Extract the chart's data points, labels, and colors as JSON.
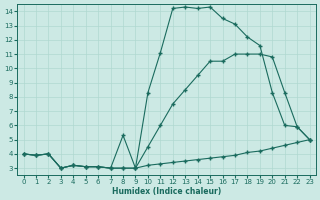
{
  "xlabel": "Humidex (Indice chaleur)",
  "xlim": [
    -0.5,
    23.5
  ],
  "ylim": [
    2.5,
    14.5
  ],
  "xticks": [
    0,
    1,
    2,
    3,
    4,
    5,
    6,
    7,
    8,
    9,
    10,
    11,
    12,
    13,
    14,
    15,
    16,
    17,
    18,
    19,
    20,
    21,
    22,
    23
  ],
  "yticks": [
    3,
    4,
    5,
    6,
    7,
    8,
    9,
    10,
    11,
    12,
    13,
    14
  ],
  "bg_color": "#cce9e4",
  "line_color": "#1a6b5e",
  "grid_color": "#b0d8d0",
  "lines": [
    {
      "x": [
        0,
        1,
        2,
        3,
        4,
        5,
        6,
        7,
        8,
        9,
        10,
        11,
        12,
        13,
        14,
        15,
        16,
        17,
        18,
        19,
        20,
        21,
        22,
        23
      ],
      "y": [
        4.0,
        3.9,
        4.0,
        3.0,
        3.2,
        3.1,
        3.1,
        3.0,
        3.0,
        3.0,
        3.2,
        3.3,
        3.4,
        3.5,
        3.6,
        3.7,
        3.8,
        3.9,
        4.1,
        4.2,
        4.4,
        4.6,
        4.8,
        5.0
      ]
    },
    {
      "x": [
        0,
        1,
        2,
        3,
        4,
        5,
        6,
        7,
        8,
        9,
        10,
        11,
        12,
        13,
        14,
        15,
        16,
        17,
        18,
        19,
        20,
        21,
        22,
        23
      ],
      "y": [
        4.0,
        3.9,
        4.0,
        3.0,
        3.2,
        3.1,
        3.1,
        3.0,
        3.0,
        3.0,
        4.5,
        6.0,
        7.5,
        8.5,
        9.5,
        10.5,
        10.5,
        11.0,
        11.0,
        11.0,
        10.8,
        8.3,
        5.9,
        5.0
      ]
    },
    {
      "x": [
        0,
        1,
        2,
        3,
        4,
        5,
        6,
        7,
        8,
        9,
        10,
        11,
        12,
        13,
        14,
        15,
        16,
        17,
        18,
        19,
        20,
        21,
        22,
        23
      ],
      "y": [
        4.0,
        3.9,
        4.0,
        3.0,
        3.2,
        3.1,
        3.1,
        3.0,
        5.3,
        3.0,
        8.3,
        11.1,
        14.2,
        14.3,
        14.2,
        14.3,
        13.5,
        13.1,
        12.2,
        11.6,
        8.3,
        6.0,
        5.9,
        5.0
      ]
    }
  ]
}
